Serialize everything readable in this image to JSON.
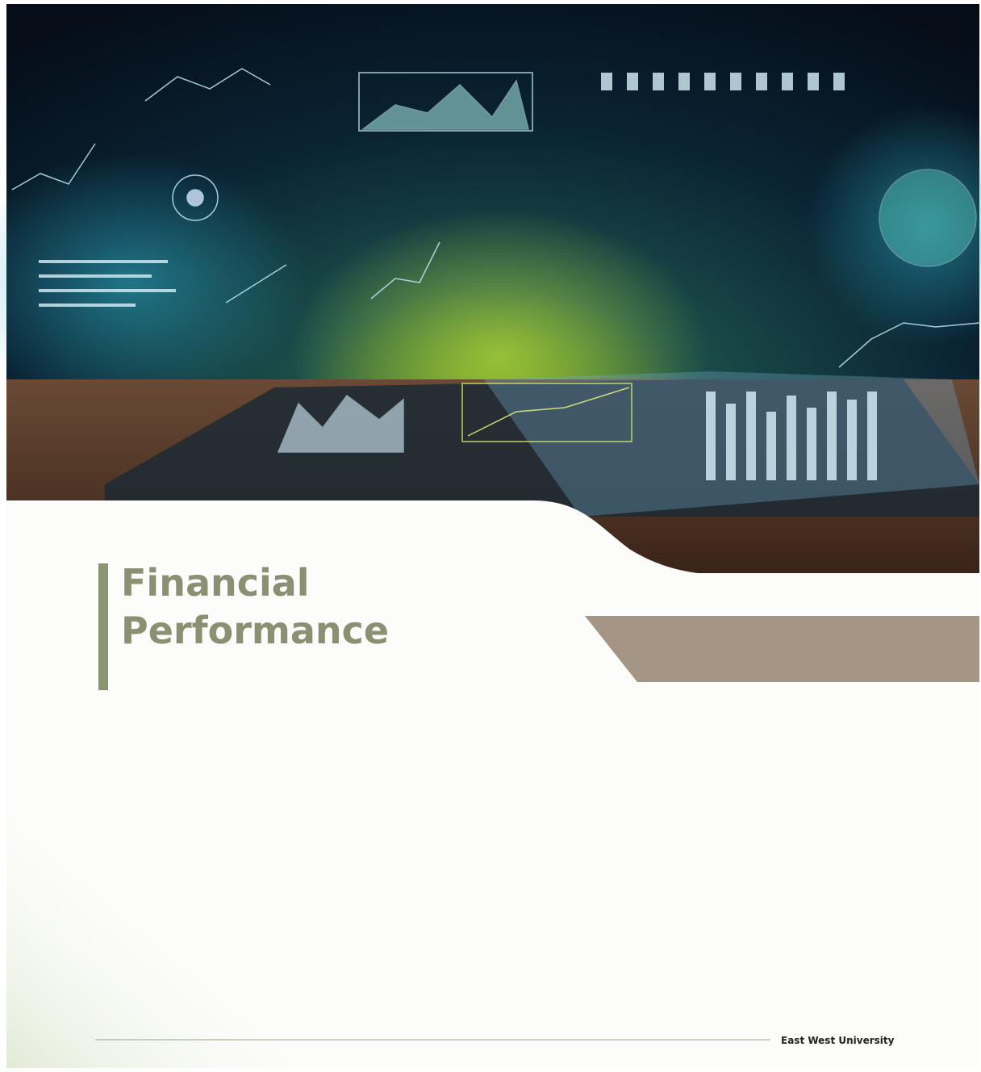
{
  "cover": {
    "title_lines": [
      "Financial",
      "Performance"
    ],
    "footer": "East West University"
  }
}
